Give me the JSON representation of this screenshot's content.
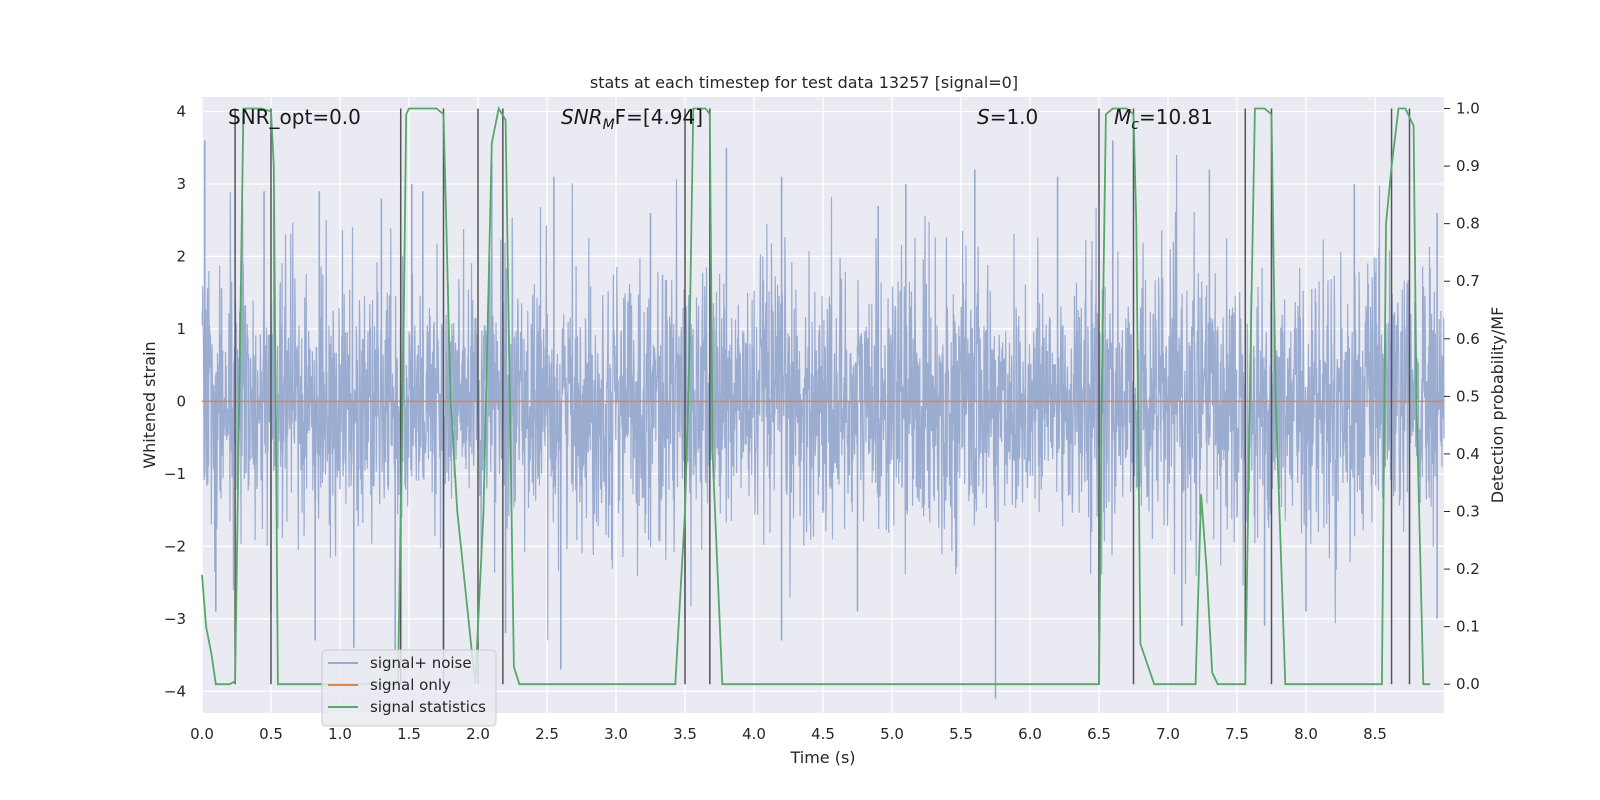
{
  "chart_data": {
    "type": "line",
    "title": "stats at each timestep for test data 13257 [signal=0]",
    "xlabel": "Time (s)",
    "ylabel": "Whitened strain",
    "ylabel_right": "Detection probability/MF",
    "xlim": [
      0.0,
      9.0
    ],
    "ylim": [
      -4.3,
      4.2
    ],
    "ylim_right": [
      -0.05,
      1.02
    ],
    "x_ticks": [
      "0.0",
      "0.5",
      "1.0",
      "1.5",
      "2.0",
      "2.5",
      "3.0",
      "3.5",
      "4.0",
      "4.5",
      "5.0",
      "5.5",
      "6.0",
      "6.5",
      "7.0",
      "7.5",
      "8.0",
      "8.5"
    ],
    "y_ticks": [
      "−4",
      "−3",
      "−2",
      "−1",
      "0",
      "1",
      "2",
      "3",
      "4"
    ],
    "y_right_ticks": [
      "0.0",
      "0.1",
      "0.2",
      "0.3",
      "0.4",
      "0.5",
      "0.6",
      "0.7",
      "0.8",
      "0.9",
      "1.0"
    ],
    "annotations": {
      "snr_opt": "SNR_opt=0.0",
      "snr_mf_sym": "SNR",
      "snr_mf_sub": "M",
      "snr_mf_rest": "F=[4.94]",
      "s_sym": "S",
      "s_rest": "=1.0",
      "mc_sym": "M",
      "mc_sub": "c",
      "mc_rest": "=10.81"
    },
    "legend": [
      {
        "label": "signal+ noise",
        "color": "#97a9cf"
      },
      {
        "label": "signal only",
        "color": "#dd8452"
      },
      {
        "label": "signal statistics",
        "color": "#55a868"
      }
    ],
    "series": [
      {
        "name": "signal+ noise",
        "color": "#97a9cf",
        "description": "whitened gaussian noise, sample std ~0.9, peaks ~ +/-3.6",
        "std": 0.9,
        "spikes_high": [
          [
            0.02,
            3.6
          ],
          [
            0.45,
            2.9
          ],
          [
            0.52,
            2.7
          ],
          [
            0.85,
            2.9
          ],
          [
            1.3,
            2.8
          ],
          [
            1.52,
            3.0
          ],
          [
            1.6,
            2.9
          ],
          [
            2.1,
            3.3
          ],
          [
            2.55,
            3.1
          ],
          [
            3.25,
            2.6
          ],
          [
            3.8,
            3.5
          ],
          [
            4.2,
            3.1
          ],
          [
            4.9,
            2.7
          ],
          [
            5.1,
            3.0
          ],
          [
            5.6,
            3.2
          ],
          [
            6.2,
            3.1
          ],
          [
            6.6,
            3.6
          ],
          [
            7.3,
            3.2
          ],
          [
            7.75,
            2.6
          ],
          [
            8.35,
            3.0
          ],
          [
            8.95,
            2.6
          ]
        ],
        "spikes_low": [
          [
            0.1,
            -2.9
          ],
          [
            0.5,
            -2.9
          ],
          [
            0.82,
            -3.3
          ],
          [
            1.1,
            -3.4
          ],
          [
            1.4,
            -3.6
          ],
          [
            1.75,
            -3.4
          ],
          [
            2.2,
            -3.2
          ],
          [
            2.6,
            -3.7
          ],
          [
            3.5,
            -3.0
          ],
          [
            4.2,
            -3.3
          ],
          [
            4.75,
            -2.9
          ],
          [
            5.75,
            -4.1
          ],
          [
            6.5,
            -3.0
          ],
          [
            7.1,
            -3.1
          ],
          [
            7.7,
            -3.1
          ],
          [
            8.0,
            -2.9
          ],
          [
            8.75,
            -3.3
          ],
          [
            8.95,
            -3.0
          ]
        ]
      },
      {
        "name": "signal only",
        "color": "#dd8452",
        "x": [
          0.0,
          9.0
        ],
        "y": [
          0.0,
          0.0
        ]
      },
      {
        "name": "signal statistics",
        "color": "#55a868",
        "axis": "right",
        "x": [
          0.0,
          0.03,
          0.07,
          0.1,
          0.2,
          0.24,
          0.27,
          0.3,
          0.43,
          0.5,
          0.52,
          0.55,
          0.6,
          1.0,
          1.42,
          1.44,
          1.46,
          1.48,
          1.5,
          1.6,
          1.7,
          1.75,
          1.77,
          1.8,
          1.85,
          1.98,
          2.04,
          2.1,
          2.15,
          2.2,
          2.26,
          2.3,
          2.5,
          3.0,
          3.4,
          3.43,
          3.5,
          3.53,
          3.56,
          3.6,
          3.65,
          3.68,
          3.7,
          3.77,
          3.8,
          4.0,
          5.0,
          6.3,
          6.5,
          6.52,
          6.55,
          6.6,
          6.7,
          6.75,
          6.77,
          6.8,
          6.9,
          7.0,
          7.2,
          7.24,
          7.28,
          7.32,
          7.36,
          7.5,
          7.56,
          7.6,
          7.63,
          7.7,
          7.75,
          7.78,
          7.85,
          7.9,
          8.0,
          8.2,
          8.55,
          8.58,
          8.62,
          8.67,
          8.72,
          8.78,
          8.8,
          8.85,
          8.9
        ],
        "y": [
          0.19,
          0.1,
          0.05,
          0.0,
          0.0,
          0.005,
          0.5,
          1.0,
          1.0,
          0.995,
          0.9,
          0.0,
          0.0,
          0.0,
          0.0,
          0.3,
          0.6,
          0.99,
          1.0,
          1.0,
          1.0,
          0.99,
          0.8,
          0.5,
          0.3,
          0.0,
          0.3,
          0.94,
          1.0,
          0.98,
          0.03,
          0.0,
          0.0,
          0.0,
          0.0,
          0.0,
          0.3,
          0.55,
          1.0,
          1.0,
          1.0,
          0.99,
          0.4,
          0.0,
          0.0,
          0.0,
          0.0,
          0.0,
          0.0,
          0.5,
          0.99,
          1.0,
          1.0,
          0.99,
          0.8,
          0.07,
          0.0,
          0.0,
          0.0,
          0.33,
          0.2,
          0.02,
          0.0,
          0.0,
          0.0,
          0.6,
          1.0,
          1.0,
          0.99,
          0.5,
          0.0,
          0.0,
          0.0,
          0.0,
          0.0,
          0.8,
          0.9,
          1.0,
          1.0,
          0.97,
          0.5,
          0.0,
          0.0
        ]
      }
    ],
    "vertical_markers": [
      0.24,
      0.5,
      1.44,
      1.75,
      2.0,
      2.18,
      3.5,
      3.68,
      6.5,
      6.75,
      7.56,
      7.75,
      8.62,
      8.75
    ]
  }
}
